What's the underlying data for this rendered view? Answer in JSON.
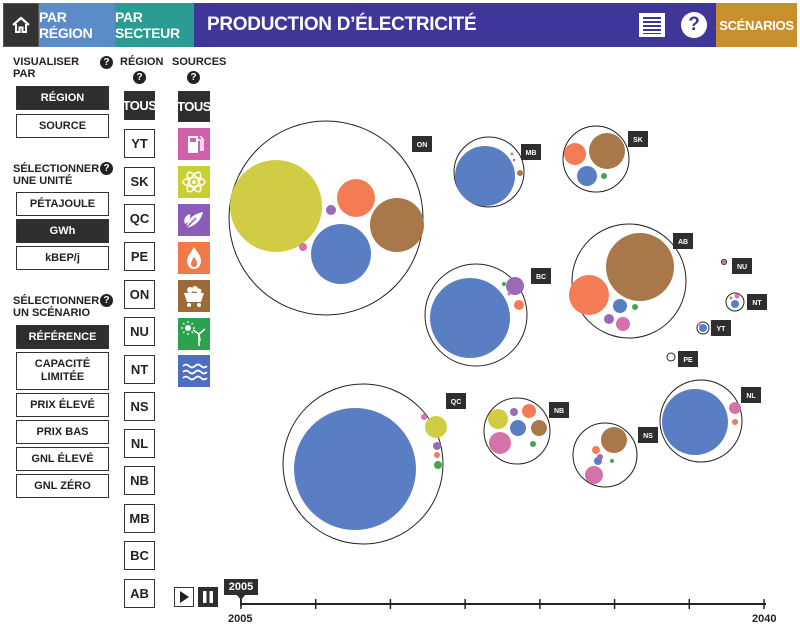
{
  "header": {
    "by_region": "PAR RÉGION",
    "by_sector": "PAR SECTEUR",
    "title": "PRODUCTION D’ÉLECTRICITÉ",
    "help_label": "?",
    "scenarios": "SCÉNARIOS"
  },
  "sidebar": {
    "view_by": "VISUALISER PAR",
    "view_options": [
      "RÉGION",
      "SOURCE"
    ],
    "unit_label": "SÉLECTIONNER UNE UNITÉ",
    "units": [
      "PÉTAJOULE",
      "GWh",
      "kBEP/j"
    ],
    "scenario_label": "SÉLECTIONNER UN SCÉNARIO",
    "scenarios": [
      "RÉFÉRENCE",
      "CAPACITÉ LIMITÉE",
      "PRIX ÉLEVÉ",
      "PRIX BAS",
      "GNL ÉLEVÉ",
      "GNL ZÉRO"
    ],
    "selected_view": "RÉGION",
    "selected_unit": "GWh",
    "selected_scenario": "RÉFÉRENCE"
  },
  "regions": {
    "header": "RÉGION",
    "items": [
      "TOUS",
      "YT",
      "SK",
      "QC",
      "PE",
      "ON",
      "NU",
      "NT",
      "NS",
      "NL",
      "NB",
      "MB",
      "BC",
      "AB"
    ],
    "selected": "TOUS"
  },
  "sources": {
    "header": "SOURCES",
    "all": "TOUS",
    "items": [
      {
        "name": "oil",
        "icon": "fuel-pump-icon",
        "color": "#d060a8"
      },
      {
        "name": "nuclear",
        "icon": "atom-icon",
        "color": "#c9cf32"
      },
      {
        "name": "biomass",
        "icon": "leaves-icon",
        "color": "#8b5cb8"
      },
      {
        "name": "gas",
        "icon": "flame-icon",
        "color": "#f07a48"
      },
      {
        "name": "coal",
        "icon": "coal-cart-icon",
        "color": "#9c6a38"
      },
      {
        "name": "renewables",
        "icon": "wind-sun-icon",
        "color": "#2aa24e"
      },
      {
        "name": "hydro",
        "icon": "waves-icon",
        "color": "#4d6fc0"
      }
    ],
    "colors": {
      "hydro": "#5a7ec4",
      "nuclear": "#d0cd44",
      "gas": "#f47c55",
      "coal": "#a8774a",
      "oil": "#d572a9",
      "biomass": "#9b69b8",
      "renewables": "#44a553"
    }
  },
  "bubbles": [
    {
      "region": "ON"
    },
    {
      "region": "MB"
    },
    {
      "region": "SK"
    },
    {
      "region": "AB"
    },
    {
      "region": "BC"
    },
    {
      "region": "NU"
    },
    {
      "region": "NT"
    },
    {
      "region": "YT"
    },
    {
      "region": "PE"
    },
    {
      "region": "QC"
    },
    {
      "region": "NB"
    },
    {
      "region": "NS"
    },
    {
      "region": "NL"
    }
  ],
  "timeline": {
    "current_year": "2005",
    "start": "2005",
    "end": "2040"
  }
}
